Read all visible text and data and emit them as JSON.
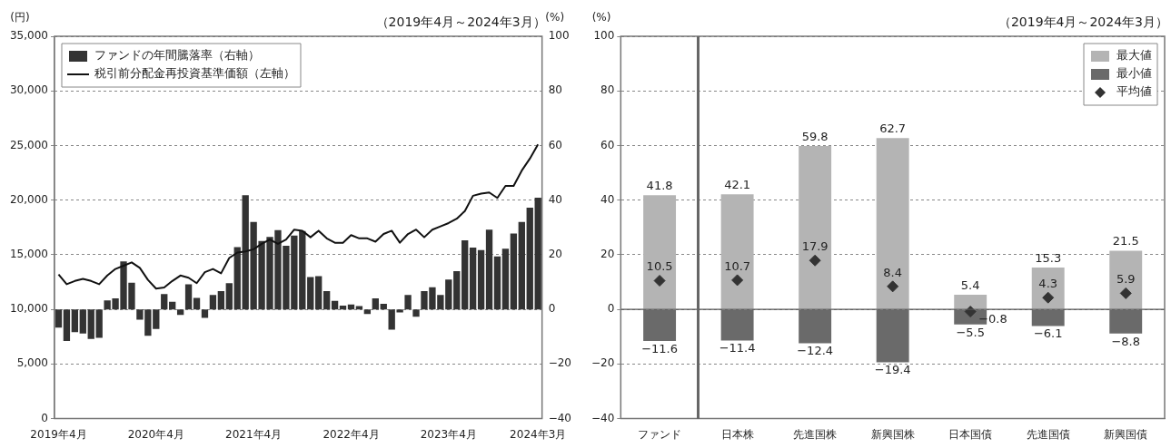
{
  "chart_data": [
    {
      "type": "bar",
      "title": "（2019年4月～2024年3月）",
      "ylabel": "(円)",
      "y2label": "(%)",
      "categories": [
        "2019年4月",
        null,
        null,
        null,
        null,
        null,
        null,
        null,
        null,
        null,
        null,
        null,
        "2020年4月",
        null,
        null,
        null,
        null,
        null,
        null,
        null,
        null,
        null,
        null,
        null,
        "2021年4月",
        null,
        null,
        null,
        null,
        null,
        null,
        null,
        null,
        null,
        null,
        null,
        "2022年4月",
        null,
        null,
        null,
        null,
        null,
        null,
        null,
        null,
        null,
        null,
        null,
        "2023年4月",
        null,
        null,
        null,
        null,
        null,
        null,
        null,
        null,
        null,
        null,
        "2024年3月"
      ],
      "series": [
        {
          "name": "ファンドの年間騰落率（右軸）",
          "axis": "y2",
          "color": "#333333",
          "values": [
            -6.7,
            -11.6,
            -8.3,
            -8.8,
            -10.8,
            -10.4,
            3.3,
            4.0,
            17.6,
            9.8,
            -3.8,
            -9.7,
            -7.2,
            5.6,
            2.8,
            -2.0,
            9.2,
            4.2,
            -3.1,
            5.3,
            6.7,
            9.6,
            22.8,
            41.8,
            32.0,
            25.0,
            26.5,
            29.0,
            23.3,
            27.0,
            28.7,
            11.8,
            12.2,
            6.7,
            3.1,
            1.4,
            1.8,
            1.2,
            -1.7,
            4.0,
            2.0,
            -7.4,
            -1.1,
            5.3,
            -2.7,
            6.7,
            8.1,
            5.3,
            10.9,
            14.0,
            25.3,
            22.6,
            21.7,
            29.2,
            19.4,
            22.2,
            27.8,
            32.0,
            37.2,
            40.9
          ]
        },
        {
          "name": "税引前分配金再投資基準価額（左軸）",
          "type": "line",
          "color": "#111111",
          "values": [
            13200,
            12300,
            12600,
            12800,
            12600,
            12300,
            13100,
            13700,
            14000,
            14300,
            13800,
            12700,
            11900,
            12000,
            12600,
            13100,
            12900,
            12400,
            13400,
            13700,
            13300,
            14700,
            15200,
            15300,
            15500,
            16000,
            16400,
            16000,
            16400,
            17300,
            17200,
            16600,
            17200,
            16500,
            16100,
            16100,
            16800,
            16500,
            16500,
            16200,
            16900,
            17200,
            16100,
            16900,
            17300,
            16600,
            17300,
            17600,
            17900,
            18300,
            19000,
            20400,
            20600,
            20700,
            20200,
            21300,
            21300,
            22700,
            23800,
            25100
          ]
        }
      ],
      "ylim": [
        0,
        35000
      ],
      "yticks": [
        0,
        {
          "value": 5000,
          "label": "5,000"
        },
        {
          "value": 10000,
          "label": "10,000"
        },
        {
          "value": 15000,
          "label": "15,000"
        },
        {
          "value": 20000,
          "label": "20,000"
        },
        {
          "value": 25000,
          "label": "25,000"
        },
        {
          "value": 30000,
          "label": "30,000"
        },
        {
          "value": 35000,
          "label": "35,000"
        }
      ],
      "y2lim": [
        -40,
        100
      ],
      "y2ticks": [
        {
          "value": -40,
          "label": "−40"
        },
        {
          "value": -20,
          "label": "−20"
        },
        0,
        20,
        40,
        60,
        80,
        100
      ],
      "grid": "y",
      "legend": "top left",
      "marker": "none"
    },
    {
      "type": "bar",
      "title": "（2019年4月～2024年3月）",
      "ylabel": "(%)",
      "categories": [
        "ファンド",
        "日本株",
        "先進国株",
        "新興国株",
        "日本国債",
        "先進国債",
        "新興国債"
      ],
      "stacked": true,
      "series": [
        {
          "name": "最大値",
          "color": "#b4b4b4",
          "values": [
            41.8,
            42.1,
            59.8,
            62.7,
            5.4,
            15.3,
            21.5
          ],
          "value_labels": [
            "41.8",
            "42.1",
            "59.8",
            "62.7",
            "5.4",
            "15.3",
            "21.5"
          ]
        },
        {
          "name": "最小値",
          "color": "#6a6a6a",
          "values": [
            -11.6,
            -11.4,
            -12.4,
            -19.4,
            -5.5,
            -6.1,
            -8.8
          ],
          "value_labels": [
            "−11.6",
            "−11.4",
            "−12.4",
            "−19.4",
            "−5.5",
            "−6.1",
            "−8.8"
          ]
        },
        {
          "name": "平均値",
          "type": "scatter",
          "color": "#333333",
          "x": [
            "ファンド",
            "日本株",
            "先進国株",
            "新興国株",
            "日本国債",
            "先進国債",
            "新興国債"
          ],
          "values": [
            10.5,
            10.7,
            17.9,
            8.4,
            -0.8,
            4.3,
            5.9
          ],
          "value_labels": [
            "10.5",
            "10.7",
            "17.9",
            "8.4",
            "−0.8",
            "4.3",
            "5.9"
          ]
        }
      ],
      "ylim": [
        -40,
        100
      ],
      "yticks": [
        {
          "value": -40,
          "label": "−40"
        },
        {
          "value": -20,
          "label": "−20"
        },
        0,
        20,
        40,
        60,
        80,
        100
      ],
      "ref_lines": [
        {
          "axis": "y",
          "value": 0,
          "color": "#555555"
        }
      ],
      "grid": "y",
      "legend": "top right",
      "marker": "diamond"
    }
  ]
}
